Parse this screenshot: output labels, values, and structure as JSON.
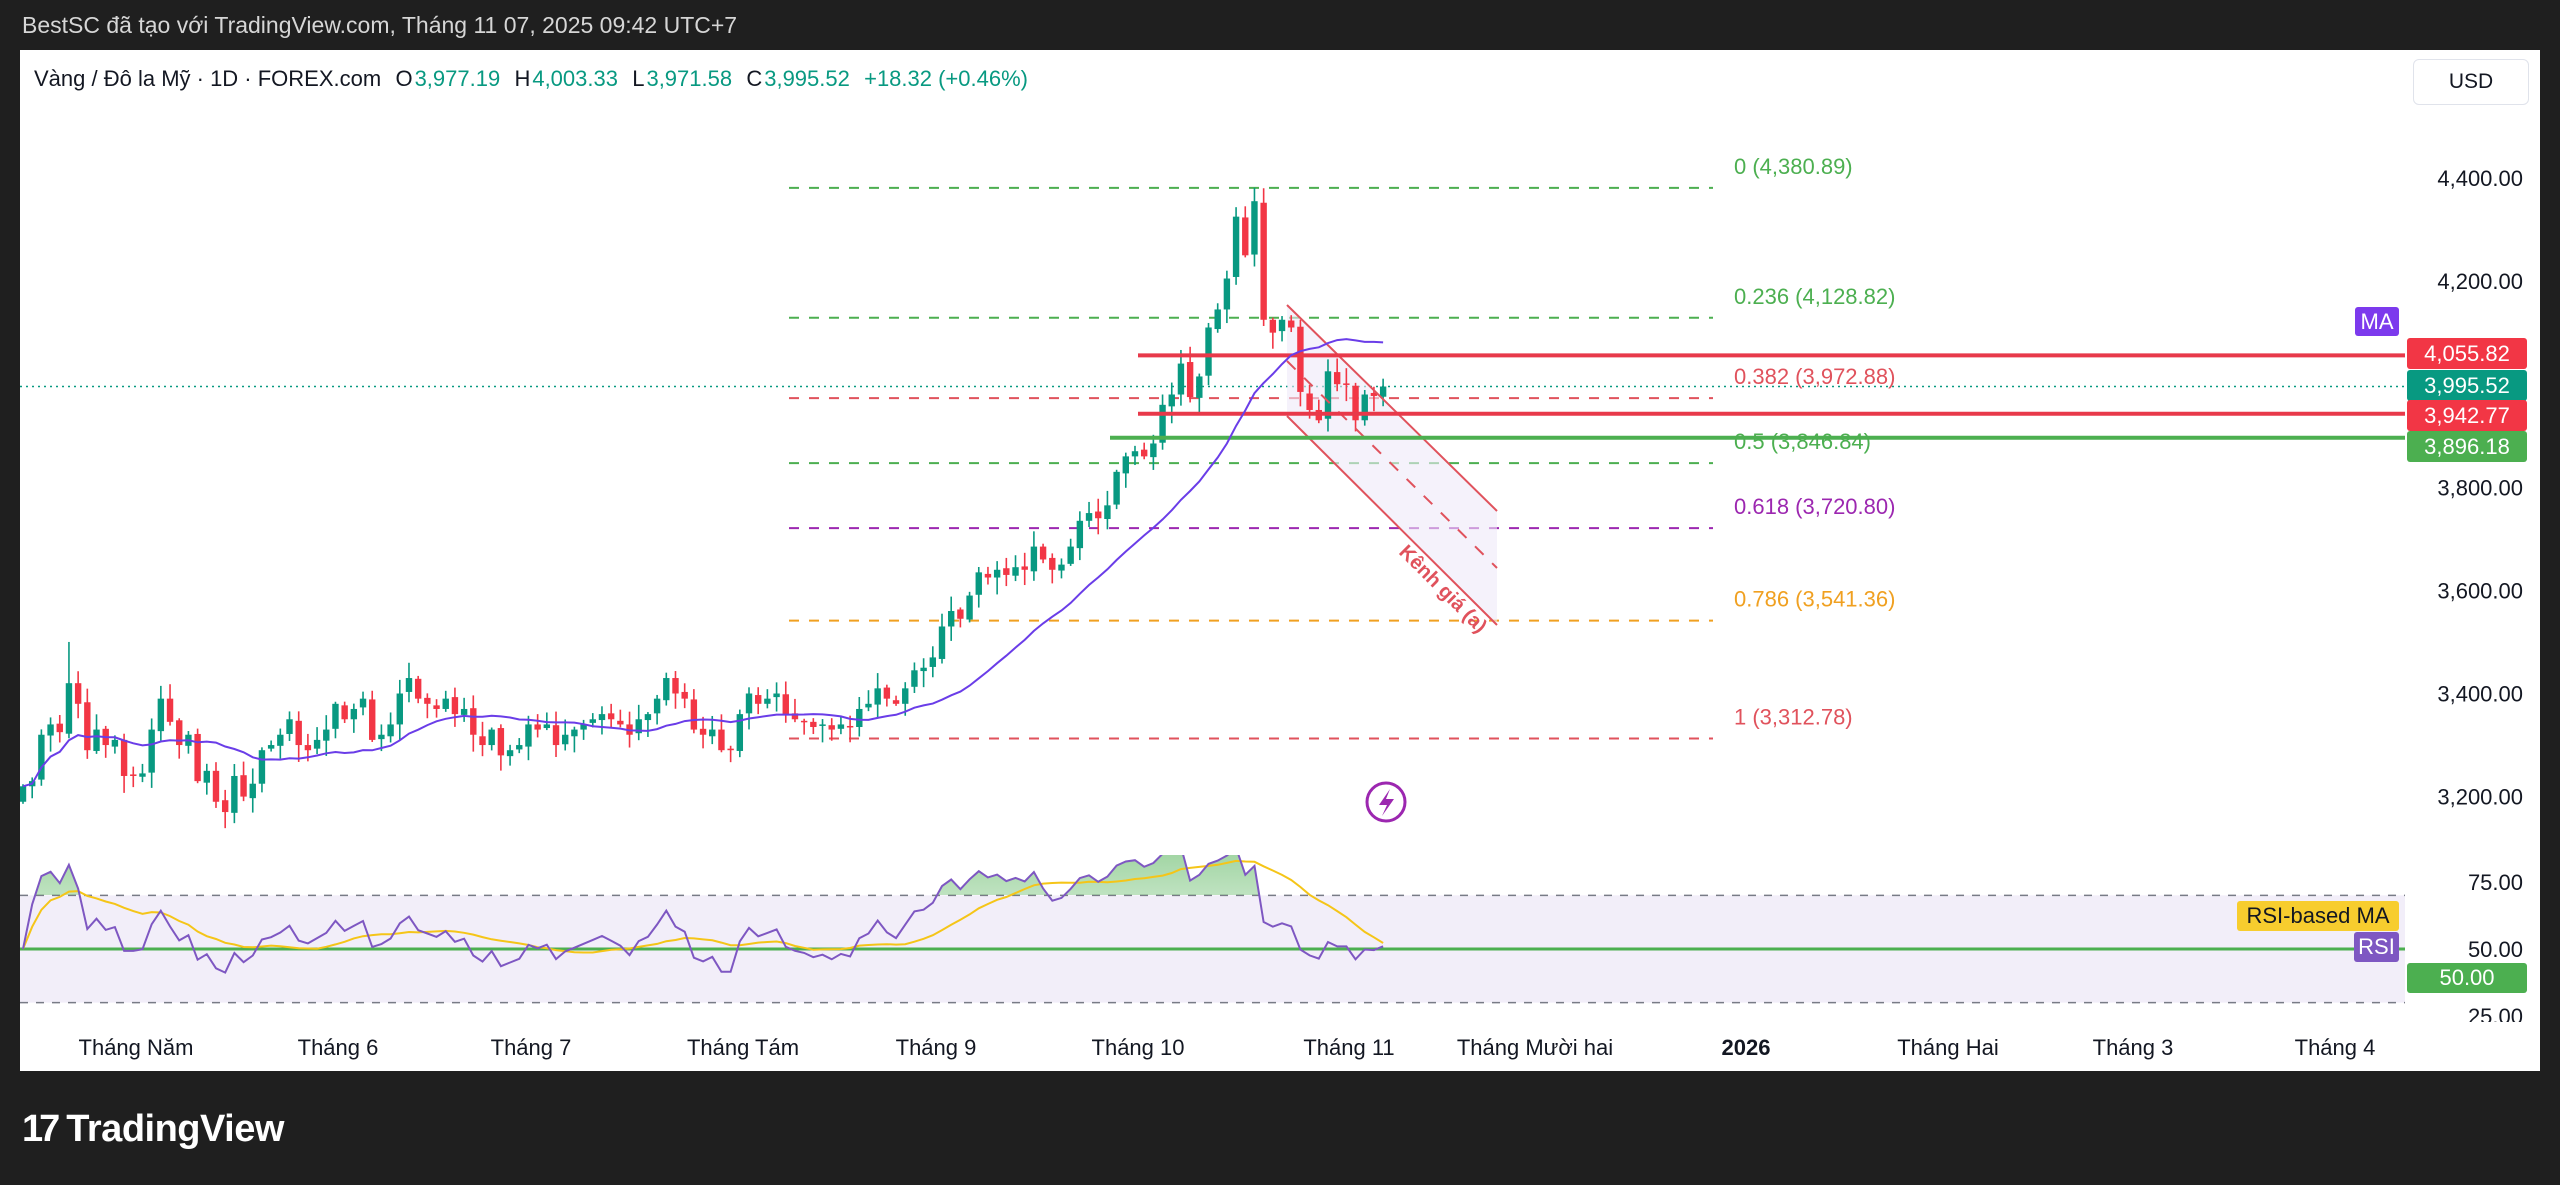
{
  "topbar": {
    "caption": "BestSC đã tạo với TradingView.com, Tháng 11 07, 2025 09:42 UTC+7"
  },
  "legend": {
    "symbol": "Vàng / Đô la Mỹ · 1D · FOREX.com",
    "o_label": "O",
    "o_value": "3,977.19",
    "h_label": "H",
    "h_value": "4,003.33",
    "l_label": "L",
    "l_value": "3,971.58",
    "c_label": "C",
    "c_value": "3,995.52",
    "change": "+18.32 (+0.46%)"
  },
  "currency": "USD",
  "badges": {
    "ma": "MA",
    "resistance_upper": "4,055.82",
    "last_price": "3,995.52",
    "resistance_lower": "3,942.77",
    "support": "3,896.18",
    "rsi_ma": "RSI-based MA",
    "rsi": "RSI",
    "rsi_level": "50.00"
  },
  "colors": {
    "up": "#089981",
    "down": "#f23645",
    "ma": "#6a3de8",
    "rsi": "#7e57c2",
    "rsi_ma": "#f5c518",
    "red_line": "#e8394a",
    "green_line": "#4caf50"
  },
  "drawings": {
    "fib_levels": [
      {
        "ratio": 0,
        "price": 4380.89,
        "label": "0 (4,380.89)",
        "color": "#4caf50"
      },
      {
        "ratio": 0.236,
        "price": 4128.82,
        "label": "0.236 (4,128.82)",
        "color": "#4caf50"
      },
      {
        "ratio": 0.382,
        "price": 3972.88,
        "label": "0.382 (3,972.88)",
        "color": "#e0525c"
      },
      {
        "ratio": 0.5,
        "price": 3846.84,
        "label": "0.5 (3,846.84)",
        "color": "#4caf50"
      },
      {
        "ratio": 0.618,
        "price": 3720.8,
        "label": "0.618 (3,720.80)",
        "color": "#9c27b0"
      },
      {
        "ratio": 0.786,
        "price": 3541.36,
        "label": "0.786 (3,541.36)",
        "color": "#f0a020"
      },
      {
        "ratio": 1,
        "price": 3312.78,
        "label": "1 (3,312.78)",
        "color": "#e0525c"
      }
    ],
    "horizontal_lines": [
      {
        "price": 4055.82,
        "color": "#e8394a"
      },
      {
        "price": 3942.77,
        "color": "#e8394a"
      },
      {
        "price": 3896.18,
        "color": "#4caf50"
      }
    ],
    "last_price": 3995.52,
    "channel_label": "Kênh giá (a)"
  },
  "chart_data": {
    "type": "candlestick",
    "title": "Vàng / Đô la Mỹ · 1D · FOREX.com",
    "ylim": [
      3080,
      4480
    ],
    "y_ticks": [
      {
        "value": 4400,
        "label": "4,400.00"
      },
      {
        "value": 4200,
        "label": "4,200.00"
      },
      {
        "value": 3800,
        "label": "3,800.00"
      },
      {
        "value": 3600,
        "label": "3,600.00"
      },
      {
        "value": 3400,
        "label": "3,400.00"
      },
      {
        "value": 3200,
        "label": "3,200.00"
      }
    ],
    "x_ticks": [
      "Tháng Năm",
      "Tháng 6",
      "Tháng 7",
      "Tháng Tám",
      "Tháng 9",
      "Tháng 10",
      "Tháng 11",
      "Tháng Mười hai",
      "2026",
      "Tháng Hai",
      "Tháng 3",
      "Tháng 4"
    ],
    "closes": [
      3220,
      3230,
      3320,
      3340,
      3325,
      3420,
      3380,
      3290,
      3330,
      3300,
      3310,
      3240,
      3240,
      3245,
      3330,
      3390,
      3345,
      3300,
      3320,
      3230,
      3250,
      3190,
      3170,
      3240,
      3200,
      3225,
      3290,
      3300,
      3320,
      3350,
      3300,
      3290,
      3310,
      3330,
      3380,
      3350,
      3370,
      3390,
      3310,
      3320,
      3340,
      3400,
      3430,
      3390,
      3380,
      3370,
      3390,
      3360,
      3370,
      3320,
      3300,
      3330,
      3280,
      3290,
      3300,
      3340,
      3330,
      3340,
      3300,
      3320,
      3330,
      3340,
      3350,
      3360,
      3350,
      3340,
      3320,
      3350,
      3360,
      3390,
      3430,
      3400,
      3390,
      3330,
      3320,
      3330,
      3290,
      3290,
      3360,
      3400,
      3380,
      3390,
      3400,
      3360,
      3350,
      3345,
      3335,
      3340,
      3330,
      3340,
      3335,
      3370,
      3380,
      3410,
      3390,
      3380,
      3410,
      3445,
      3450,
      3470,
      3530,
      3560,
      3545,
      3590,
      3635,
      3625,
      3640,
      3630,
      3645,
      3640,
      3685,
      3660,
      3640,
      3650,
      3685,
      3735,
      3750,
      3740,
      3765,
      3830,
      3860,
      3870,
      3860,
      3885,
      3960,
      3980,
      4040,
      3975,
      4015,
      4110,
      4145,
      4205,
      4325,
      4250,
      4355,
      4125,
      4100,
      4125,
      4110,
      3985,
      3950,
      3930,
      4025,
      4000,
      4000,
      3930,
      3980,
      3977.19,
      3995.52
    ],
    "first_open": 3190,
    "high_overrides": {
      "5": 3500,
      "134": 4381
    },
    "indicators": {
      "ma": {
        "name": "MA",
        "period": 20
      },
      "rsi": {
        "name": "RSI",
        "period": 14,
        "levels": [
          70,
          50,
          30
        ],
        "ticks": [
          {
            "value": 75,
            "label": "75.00"
          },
          {
            "value": 50,
            "label": "50.00"
          },
          {
            "value": 25,
            "label": "25.00"
          }
        ]
      },
      "rsi_ma": {
        "name": "RSI-based MA",
        "period": 14
      }
    }
  },
  "footer": {
    "brand": "TradingView",
    "brand_mark": "17"
  }
}
